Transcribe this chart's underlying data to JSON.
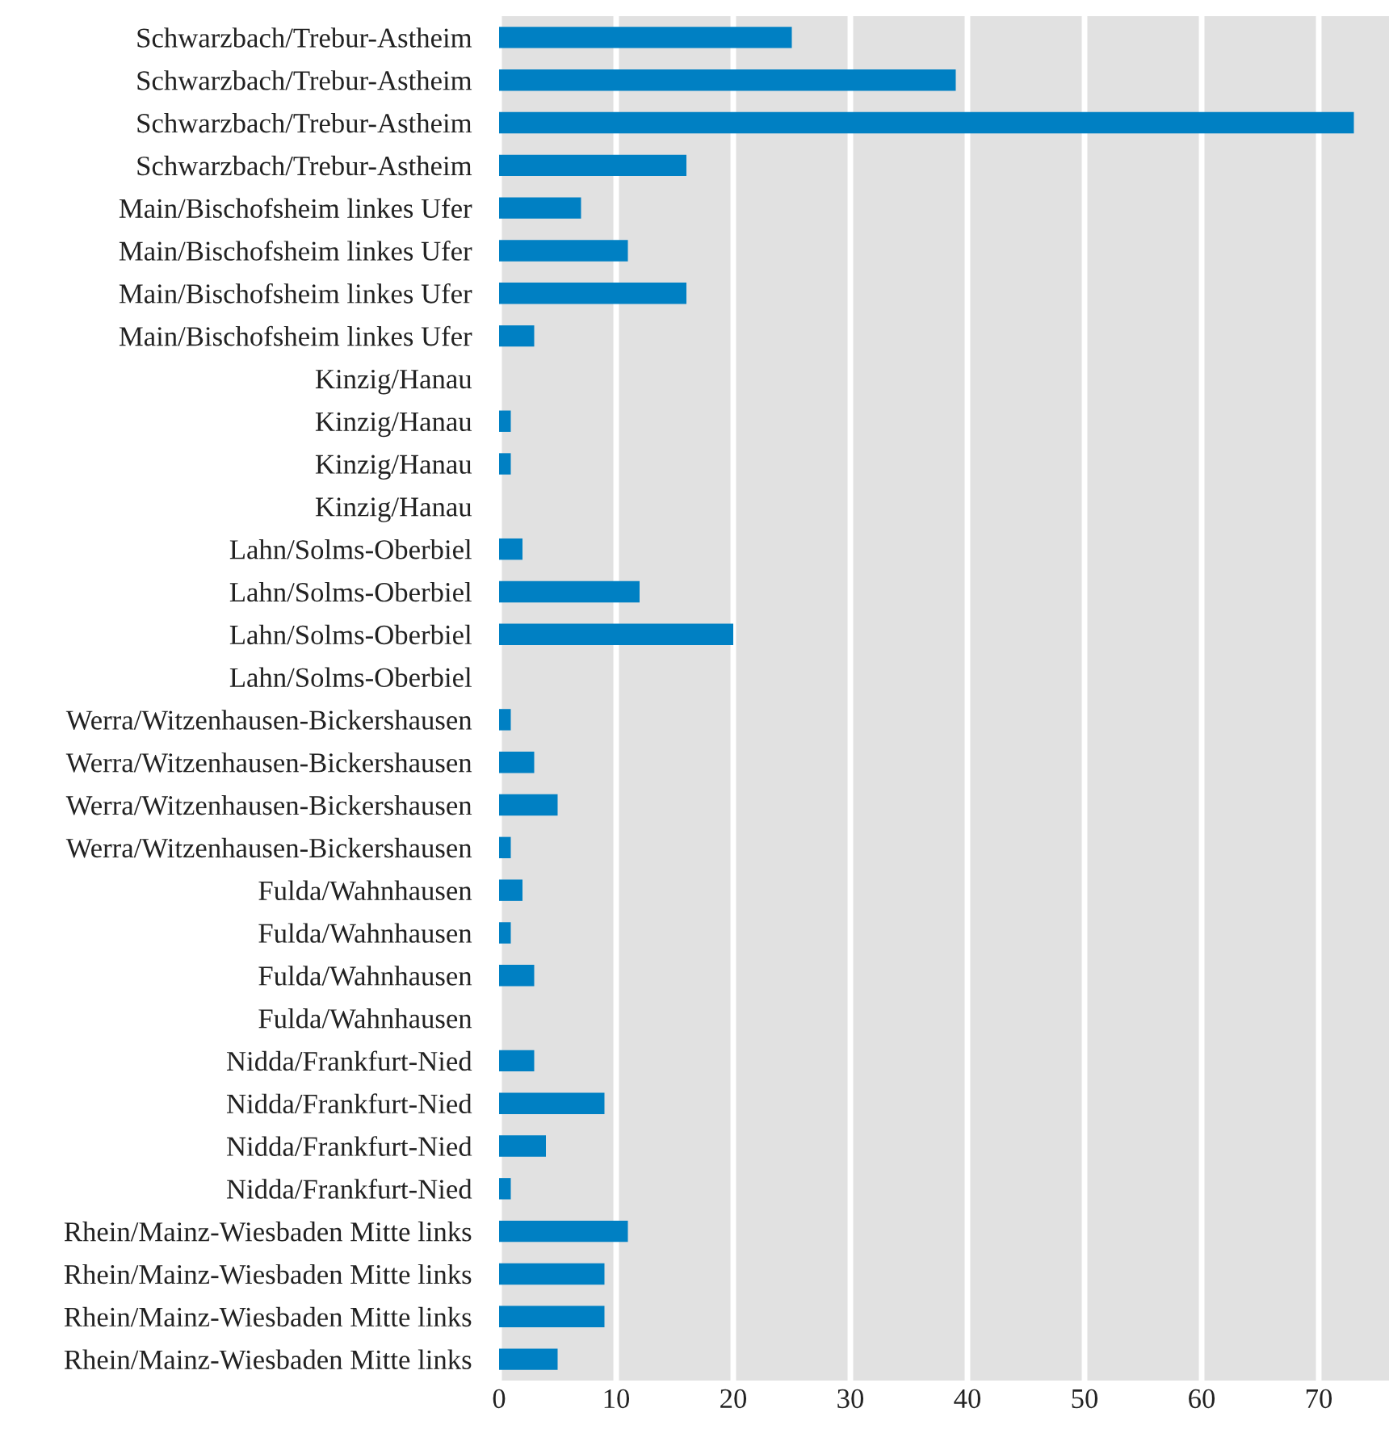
{
  "chart_data": {
    "type": "bar",
    "orientation": "horizontal",
    "categories": [
      "Schwarzbach/Trebur-Astheim",
      "Schwarzbach/Trebur-Astheim",
      "Schwarzbach/Trebur-Astheim",
      "Schwarzbach/Trebur-Astheim",
      "Main/Bischofsheim linkes Ufer",
      "Main/Bischofsheim linkes Ufer",
      "Main/Bischofsheim linkes Ufer",
      "Main/Bischofsheim linkes Ufer",
      "Kinzig/Hanau",
      "Kinzig/Hanau",
      "Kinzig/Hanau",
      "Kinzig/Hanau",
      "Lahn/Solms-Oberbiel",
      "Lahn/Solms-Oberbiel",
      "Lahn/Solms-Oberbiel",
      "Lahn/Solms-Oberbiel",
      "Werra/Witzenhausen-Bickershausen",
      "Werra/Witzenhausen-Bickershausen",
      "Werra/Witzenhausen-Bickershausen",
      "Werra/Witzenhausen-Bickershausen",
      "Fulda/Wahnhausen",
      "Fulda/Wahnhausen",
      "Fulda/Wahnhausen",
      "Fulda/Wahnhausen",
      "Nidda/Frankfurt-Nied",
      "Nidda/Frankfurt-Nied",
      "Nidda/Frankfurt-Nied",
      "Nidda/Frankfurt-Nied",
      "Rhein/Mainz-Wiesbaden Mitte links",
      "Rhein/Mainz-Wiesbaden Mitte links",
      "Rhein/Mainz-Wiesbaden Mitte links",
      "Rhein/Mainz-Wiesbaden Mitte links"
    ],
    "values": [
      25,
      39,
      73,
      16,
      7,
      11,
      16,
      3,
      null,
      1,
      1,
      null,
      2,
      12,
      20,
      null,
      1,
      3,
      5,
      1,
      2,
      1,
      3,
      null,
      3,
      9,
      4,
      1,
      11,
      9,
      9,
      5
    ],
    "color": "#0080c3",
    "xlim": [
      0,
      76
    ],
    "xticks": [
      0,
      10,
      20,
      30,
      40,
      50,
      60,
      70
    ],
    "grid": "x"
  }
}
